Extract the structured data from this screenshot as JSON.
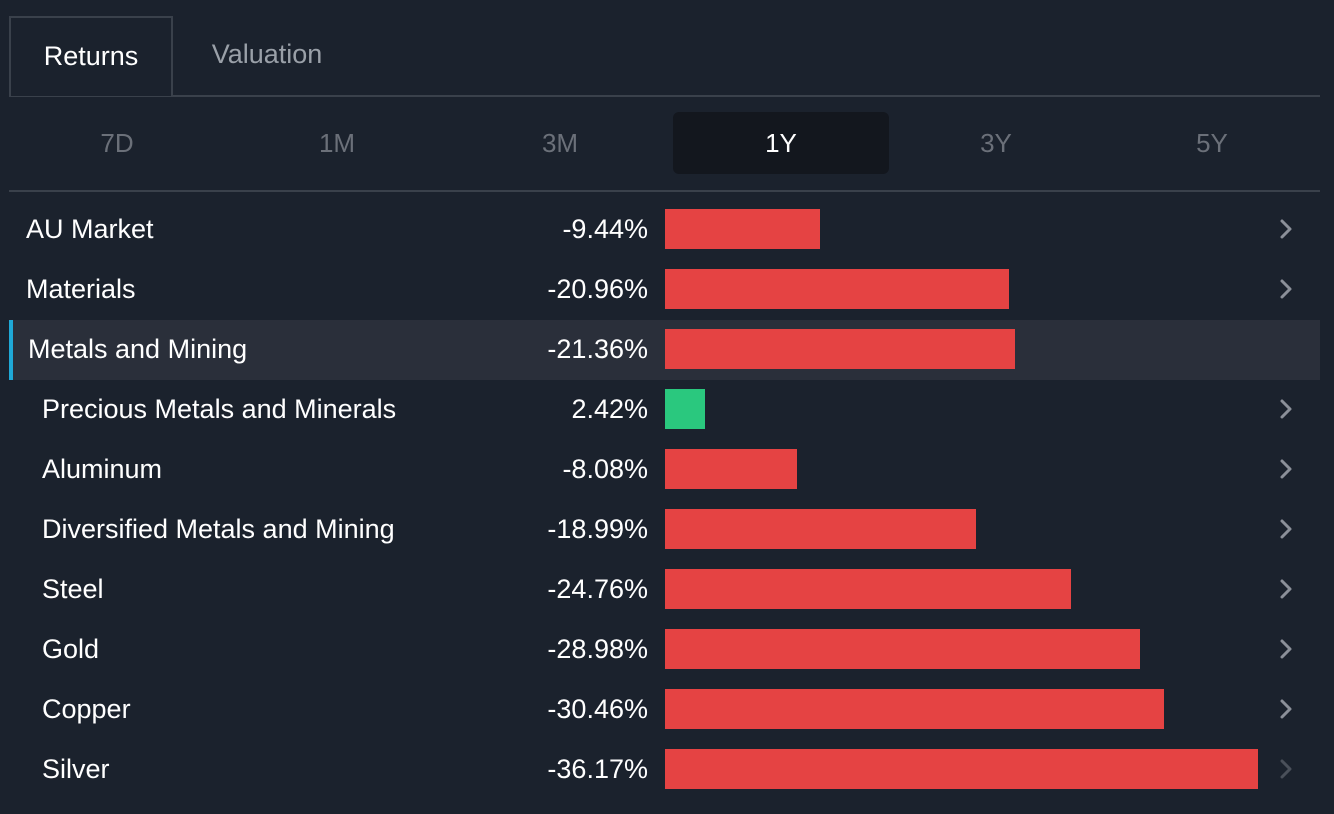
{
  "tabs": {
    "active": "Returns",
    "inactive": "Valuation"
  },
  "periods": [
    "7D",
    "1M",
    "3M",
    "1Y",
    "3Y",
    "5Y"
  ],
  "active_period": "1Y",
  "colors": {
    "negative": "#e54343",
    "positive": "#2ac87e",
    "highlight_accent": "#1fa8d6"
  },
  "chart_data": {
    "type": "bar",
    "orientation": "horizontal",
    "categories": [
      "AU Market",
      "Materials",
      "Metals and Mining",
      "Precious Metals and Minerals",
      "Aluminum",
      "Diversified Metals and Mining",
      "Steel",
      "Gold",
      "Copper",
      "Silver"
    ],
    "values": [
      -9.44,
      -20.96,
      -21.36,
      2.42,
      -8.08,
      -18.99,
      -24.76,
      -28.98,
      -30.46,
      -36.17
    ],
    "value_labels": [
      "-9.44%",
      "-20.96%",
      "-21.36%",
      "2.42%",
      "-8.08%",
      "-18.99%",
      "-24.76%",
      "-28.98%",
      "-30.46%",
      "-36.17%"
    ]
  },
  "rows": [
    {
      "label": "AU Market",
      "value": "-9.44%"
    },
    {
      "label": "Materials",
      "value": "-20.96%"
    },
    {
      "label": "Metals and Mining",
      "value": "-21.36%"
    },
    {
      "label": "Precious Metals and Minerals",
      "value": "2.42%"
    },
    {
      "label": "Aluminum",
      "value": "-8.08%"
    },
    {
      "label": "Diversified Metals and Mining",
      "value": "-18.99%"
    },
    {
      "label": "Steel",
      "value": "-24.76%"
    },
    {
      "label": "Gold",
      "value": "-28.98%"
    },
    {
      "label": "Copper",
      "value": "-30.46%"
    },
    {
      "label": "Silver",
      "value": "-36.17%"
    }
  ],
  "highlighted_row": "Metals and Mining",
  "icons": {
    "row_chevron": "chevron-right-icon"
  }
}
